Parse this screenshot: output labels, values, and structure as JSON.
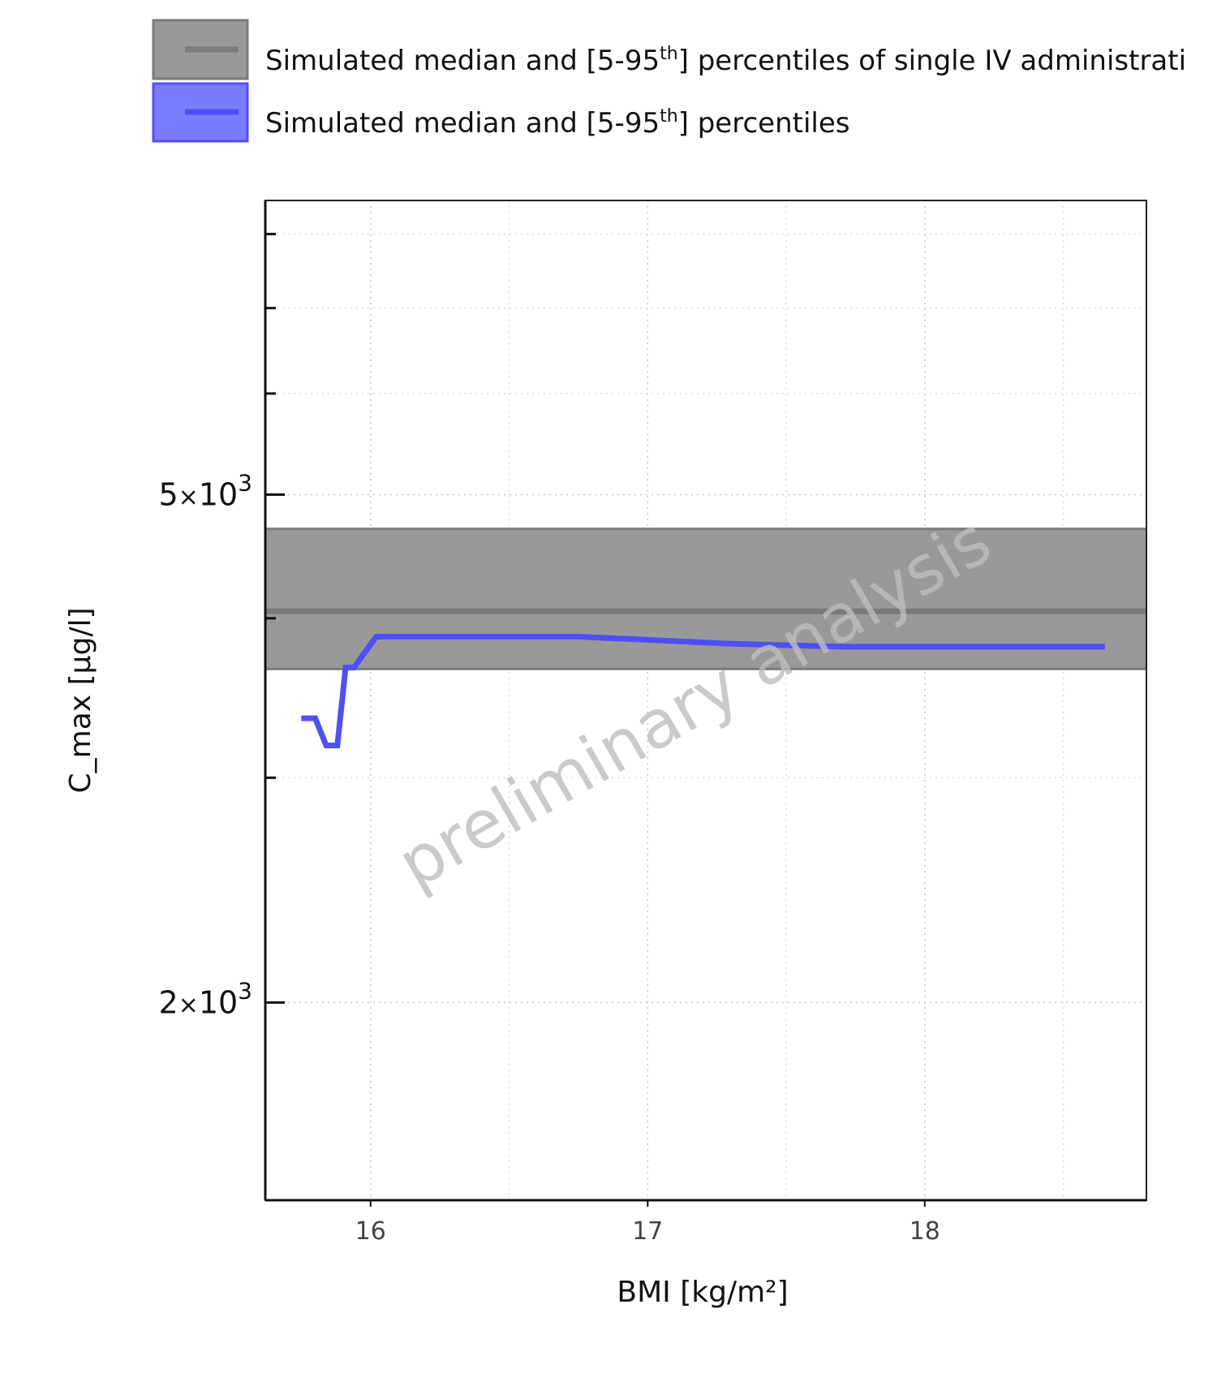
{
  "chart_data": {
    "type": "line",
    "x_label": "BMI [kg/m²]",
    "y_label": "C_max [µg/l]",
    "x_range": [
      15.62,
      18.8
    ],
    "y_range": [
      1400,
      8500
    ],
    "y_scale": "log",
    "grid": true,
    "legend_position": "top",
    "x_ticks": [
      {
        "value": 16,
        "label": "16"
      },
      {
        "value": 17,
        "label": "17"
      },
      {
        "value": 18,
        "label": "18"
      }
    ],
    "y_ticks": [
      {
        "value": 2000,
        "mantissa": "2",
        "times": "×",
        "base": "10",
        "exp": "3"
      },
      {
        "value": 5000,
        "mantissa": "5",
        "times": "×",
        "base": "10",
        "exp": "3"
      }
    ],
    "y_minor_ticks": [
      3000,
      4000,
      6000,
      7000,
      8000
    ],
    "x_minor_grid": [
      16.5,
      17.5,
      18.5
    ],
    "legend": [
      {
        "label_pre": "Simulated median and [5-95",
        "label_sup": "th",
        "label_post": "] percentiles of single IV administrati",
        "fill": "#999999",
        "line": "#7a7a7a"
      },
      {
        "label_pre": "Simulated median and [5-95",
        "label_sup": "th",
        "label_post": "] percentiles",
        "fill": "#7b7bff",
        "line": "#4f4ff5"
      }
    ],
    "reference_band": {
      "name": "single IV administration",
      "lower": 3650,
      "median": 4050,
      "upper": 4700,
      "fill": "#999999",
      "line": "#7a7a7a"
    },
    "series": [
      {
        "color": "#4f4ff5",
        "x": [
          15.75,
          15.8,
          15.84,
          15.88,
          15.91,
          15.94,
          16.02,
          16.3,
          16.75,
          17.3,
          17.7,
          18.2,
          18.65
        ],
        "y": [
          3340,
          3340,
          3180,
          3180,
          3660,
          3660,
          3870,
          3870,
          3870,
          3820,
          3800,
          3800,
          3800
        ]
      }
    ],
    "annotation": "preliminary analysis"
  }
}
